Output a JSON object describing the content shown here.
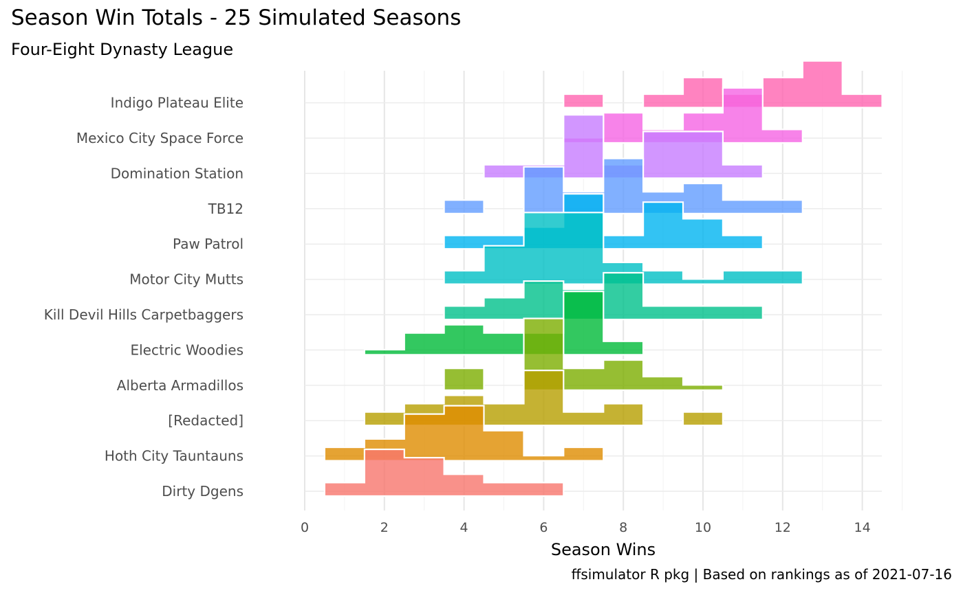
{
  "title": "Season Win Totals - 25 Simulated Seasons",
  "subtitle": "Four-Eight Dynasty League",
  "caption": "ffsimulator R pkg | Based on rankings as of 2021-07-16",
  "chart_data": {
    "type": "ridgeline-histogram",
    "xlabel": "Season Wins",
    "ylabel": "",
    "xlim": [
      0,
      14.5
    ],
    "xticks": [
      0,
      2,
      4,
      6,
      8,
      10,
      12,
      14
    ],
    "grid": true,
    "legend": "none",
    "count_unit": "seasons",
    "series": [
      {
        "name": "Dirty Dgens",
        "color": "#F8766D",
        "bins": [
          [
            1,
            1
          ],
          [
            2,
            5
          ],
          [
            3,
            4
          ],
          [
            4,
            2
          ],
          [
            5,
            1
          ],
          [
            6,
            1
          ]
        ]
      },
      {
        "name": "Hoth City Tauntauns",
        "color": "#DE8C00",
        "bins": [
          [
            1,
            1
          ],
          [
            2,
            2
          ],
          [
            3,
            5
          ],
          [
            4,
            6
          ],
          [
            5,
            3
          ],
          [
            6,
            0
          ],
          [
            7,
            1
          ]
        ]
      },
      {
        "name": "[Redacted]",
        "color": "#B79F00",
        "bins": [
          [
            2,
            1
          ],
          [
            3,
            2
          ],
          [
            4,
            3
          ],
          [
            5,
            2
          ],
          [
            6,
            6
          ],
          [
            7,
            1
          ],
          [
            8,
            2
          ],
          [
            10,
            1
          ]
        ]
      },
      {
        "name": "Alberta Armadillos",
        "color": "#7CAE00",
        "bins": [
          [
            4,
            2
          ],
          [
            6,
            8
          ],
          [
            7,
            2
          ],
          [
            8,
            3
          ],
          [
            9,
            1
          ],
          [
            10,
            0
          ]
        ]
      },
      {
        "name": "Electric Woodies",
        "color": "#00BA38",
        "bins": [
          [
            2,
            0
          ],
          [
            3,
            2
          ],
          [
            4,
            3
          ],
          [
            5,
            2
          ],
          [
            6,
            2
          ],
          [
            7,
            7
          ],
          [
            8,
            1
          ]
        ]
      },
      {
        "name": "Kill Devil Hills Carpetbaggers",
        "color": "#00C08B",
        "bins": [
          [
            4,
            1
          ],
          [
            5,
            2
          ],
          [
            6,
            4
          ],
          [
            7,
            3
          ],
          [
            8,
            5
          ],
          [
            9,
            1
          ],
          [
            10,
            1
          ],
          [
            11,
            1
          ]
        ]
      },
      {
        "name": "Motor City Mutts",
        "color": "#00BFC4",
        "bins": [
          [
            4,
            1
          ],
          [
            5,
            4
          ],
          [
            6,
            8
          ],
          [
            7,
            8
          ],
          [
            8,
            2
          ],
          [
            9,
            1
          ],
          [
            10,
            0
          ],
          [
            11,
            1
          ],
          [
            12,
            1
          ]
        ]
      },
      {
        "name": "Paw Patrol",
        "color": "#00B4F0",
        "bins": [
          [
            4,
            1
          ],
          [
            5,
            1
          ],
          [
            6,
            2
          ],
          [
            7,
            6
          ],
          [
            8,
            1
          ],
          [
            9,
            5
          ],
          [
            10,
            3
          ],
          [
            11,
            1
          ]
        ]
      },
      {
        "name": "TB12",
        "color": "#619CFF",
        "bins": [
          [
            4,
            1
          ],
          [
            6,
            5
          ],
          [
            7,
            2
          ],
          [
            8,
            6
          ],
          [
            9,
            2
          ],
          [
            10,
            3
          ],
          [
            11,
            1
          ],
          [
            12,
            1
          ]
        ]
      },
      {
        "name": "Domination Station",
        "color": "#C77CFF",
        "bins": [
          [
            5,
            1
          ],
          [
            6,
            1
          ],
          [
            7,
            7
          ],
          [
            8,
            1
          ],
          [
            9,
            5
          ],
          [
            10,
            5
          ],
          [
            11,
            1
          ]
        ]
      },
      {
        "name": "Mexico City Space Force",
        "color": "#F564E3",
        "bins": [
          [
            7,
            0
          ],
          [
            8,
            3
          ],
          [
            9,
            1
          ],
          [
            10,
            3
          ],
          [
            11,
            6
          ],
          [
            12,
            1
          ]
        ]
      },
      {
        "name": "Indigo Plateau Elite",
        "color": "#FF64B0",
        "bins": [
          [
            7,
            1
          ],
          [
            9,
            1
          ],
          [
            10,
            3
          ],
          [
            11,
            1
          ],
          [
            12,
            3
          ],
          [
            13,
            5
          ],
          [
            14,
            1
          ]
        ]
      }
    ]
  }
}
